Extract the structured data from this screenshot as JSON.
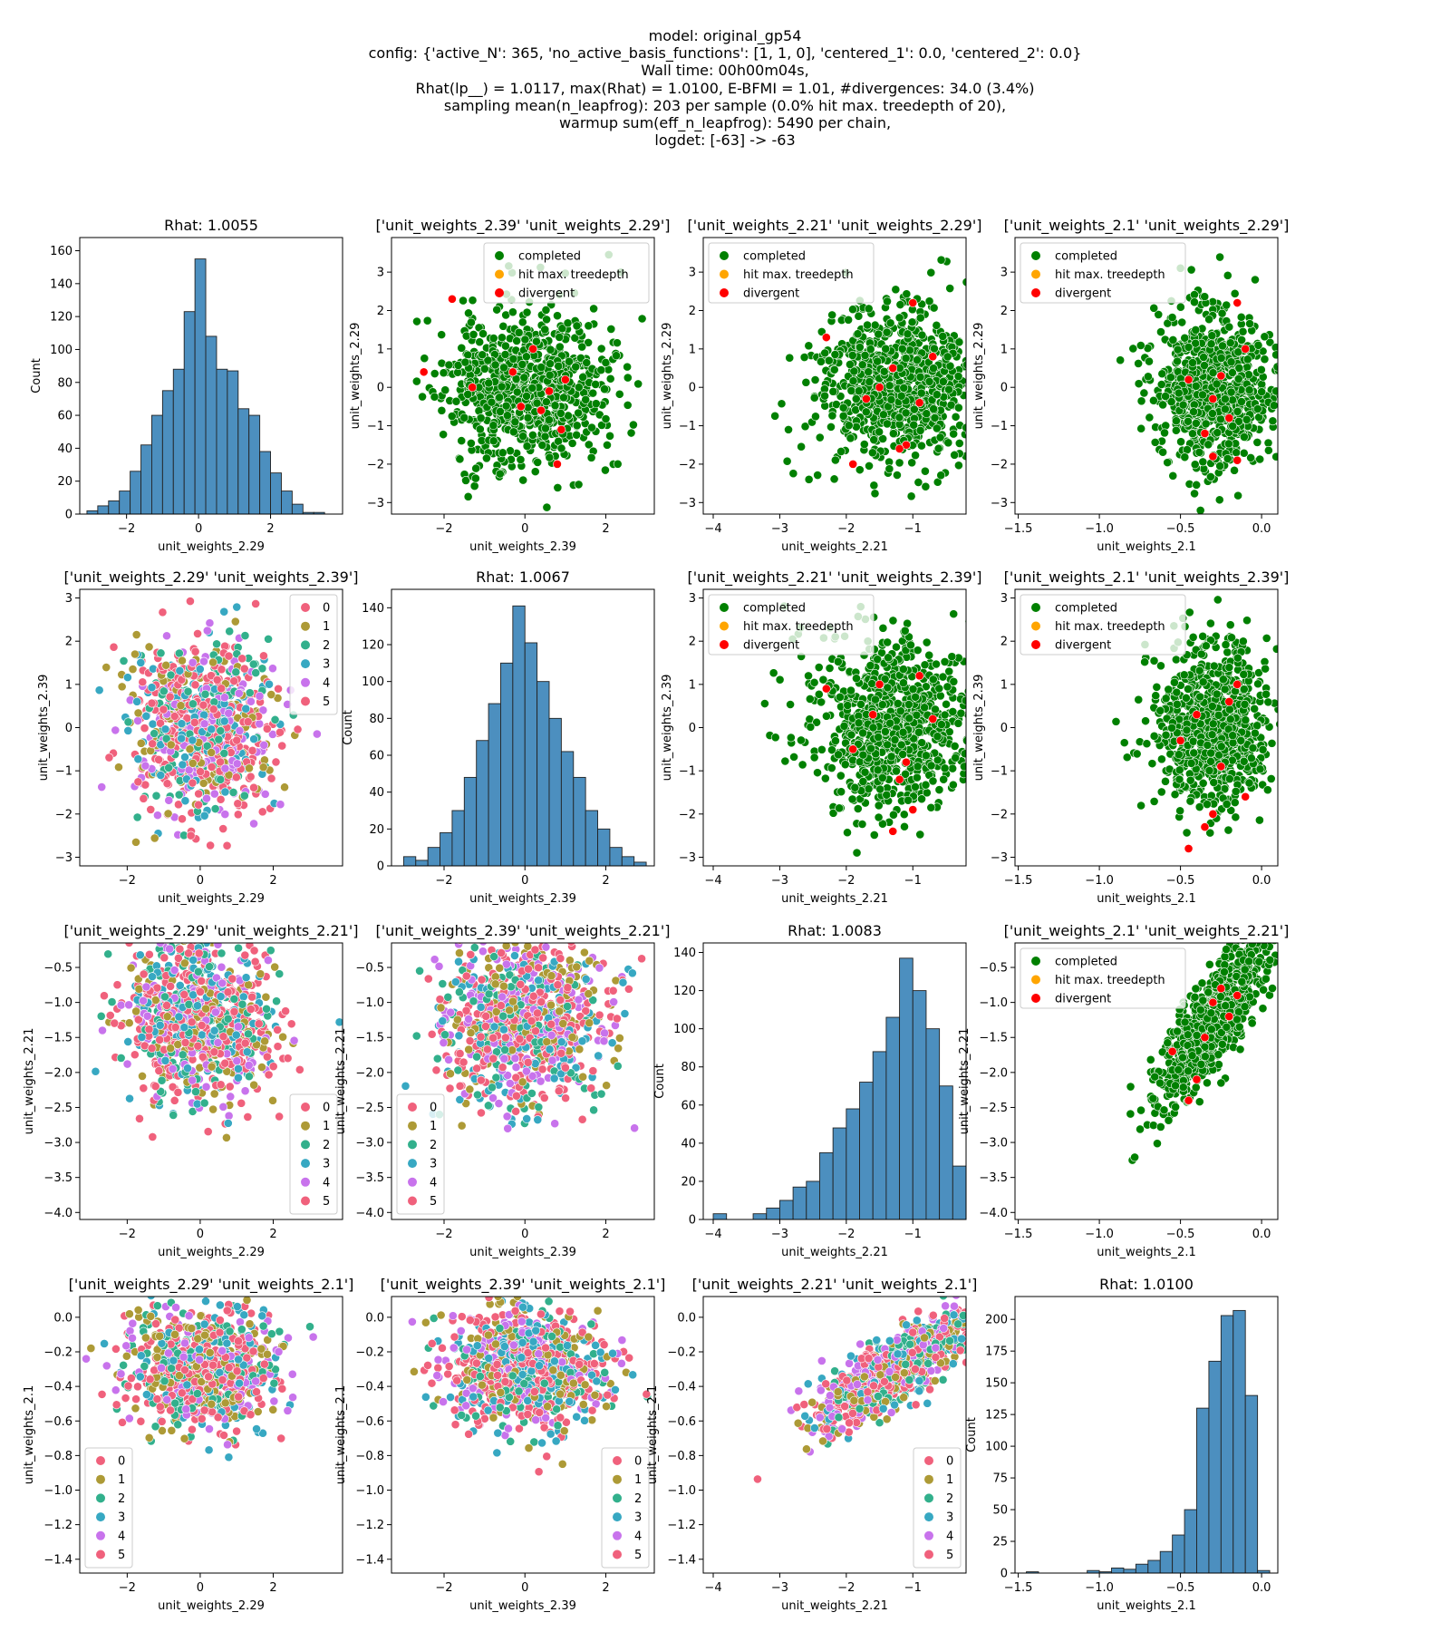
{
  "header": {
    "lines": [
      "model: original_gp54",
      "config: {'active_N': 365, 'no_active_basis_functions': [1, 1, 0], 'centered_1': 0.0, 'centered_2': 0.0}",
      "Wall time: 00h00m04s,",
      "Rhat(lp__) = 1.0117, max(Rhat) = 1.0100, E-BFMI = 1.01, #divergences: 34.0 (3.4%)",
      "sampling mean(n_leapfrog): 203 per sample (0.0% hit max. treedepth of 20),",
      "warmup sum(eff_n_leapfrog): 5490 per chain,",
      "logdet: [-63] -> -63"
    ]
  },
  "colors": {
    "hist_fill": "#4c8fbf",
    "completed": "#008000",
    "treedepth": "#ffa500",
    "divergent": "#ff0000",
    "chains": [
      "#f0617c",
      "#ad9a36",
      "#32b08c",
      "#37a8c2",
      "#c873ec",
      "#f0617c"
    ]
  },
  "legends": {
    "sampler": [
      "completed",
      "hit max. treedepth",
      "divergent"
    ],
    "chains": [
      "0",
      "1",
      "2",
      "3",
      "4",
      "5"
    ]
  },
  "chart_data": [
    {
      "type": "bar",
      "title": "Rhat: 1.0055",
      "xlabel": "unit_weights_2.29",
      "ylabel": "Count",
      "xlim": [
        -3.3,
        4.0
      ],
      "ylim": [
        0,
        168
      ],
      "xticks": [
        -2,
        0,
        2
      ],
      "yticks": [
        0,
        20,
        40,
        60,
        80,
        100,
        120,
        140,
        160
      ],
      "bins": [
        [
          -3.1,
          -2.8,
          2
        ],
        [
          -2.8,
          -2.5,
          5
        ],
        [
          -2.5,
          -2.2,
          8
        ],
        [
          -2.2,
          -1.9,
          14
        ],
        [
          -1.9,
          -1.6,
          26
        ],
        [
          -1.6,
          -1.3,
          42
        ],
        [
          -1.3,
          -1.0,
          60
        ],
        [
          -1.0,
          -0.7,
          75
        ],
        [
          -0.7,
          -0.4,
          88
        ],
        [
          -0.4,
          -0.1,
          123
        ],
        [
          -0.1,
          0.2,
          155
        ],
        [
          0.2,
          0.5,
          108
        ],
        [
          0.5,
          0.8,
          88
        ],
        [
          0.8,
          1.1,
          87
        ],
        [
          1.1,
          1.4,
          64
        ],
        [
          1.4,
          1.7,
          60
        ],
        [
          1.7,
          2.0,
          38
        ],
        [
          2.0,
          2.3,
          25
        ],
        [
          2.3,
          2.6,
          14
        ],
        [
          2.6,
          2.9,
          6
        ],
        [
          2.9,
          3.2,
          1
        ],
        [
          3.2,
          3.5,
          1
        ]
      ]
    },
    {
      "type": "scatter",
      "title": "['unit_weights_2.39' 'unit_weights_2.29']",
      "xlabel": "unit_weights_2.39",
      "ylabel": "unit_weights_2.29",
      "xlim": [
        -3.3,
        3.2
      ],
      "ylim": [
        -3.3,
        3.9
      ],
      "xticks": [
        -2,
        0,
        2
      ],
      "yticks": [
        -3,
        -2,
        -1,
        0,
        1,
        2,
        3
      ],
      "legend": "sampler",
      "legend_pos": "upper-right",
      "gen": {
        "n": 820,
        "mx": 0,
        "sx": 1.0,
        "my": 0,
        "sy": 1.0,
        "r": 0,
        "seed": 11
      },
      "divergent": [
        [
          -2.5,
          0.4
        ],
        [
          -1.8,
          2.3
        ],
        [
          -0.3,
          0.4
        ],
        [
          0.8,
          -2.0
        ],
        [
          0.4,
          -0.6
        ],
        [
          1.0,
          0.2
        ],
        [
          -0.1,
          -0.5
        ],
        [
          0.2,
          1.0
        ],
        [
          0.6,
          -0.1
        ],
        [
          -1.3,
          0.0
        ],
        [
          0.9,
          -1.1
        ]
      ]
    },
    {
      "type": "scatter",
      "title": "['unit_weights_2.21' 'unit_weights_2.29']",
      "xlabel": "unit_weights_2.21",
      "ylabel": "unit_weights_2.29",
      "xlim": [
        -4.15,
        -0.2
      ],
      "ylim": [
        -3.3,
        3.9
      ],
      "xticks": [
        -4,
        -3,
        -2,
        -1
      ],
      "yticks": [
        -3,
        -2,
        -1,
        0,
        1,
        2,
        3
      ],
      "legend": "sampler",
      "legend_pos": "upper-left",
      "gen": {
        "n": 820,
        "mx": -1.25,
        "sx": 0.6,
        "my": 0,
        "sy": 1.0,
        "r": 0,
        "seed": 23
      },
      "divergent": [
        [
          -1.0,
          2.2
        ],
        [
          -1.9,
          -2.0
        ],
        [
          -1.5,
          0.0
        ],
        [
          -1.1,
          -1.5
        ],
        [
          -0.9,
          -0.4
        ],
        [
          -2.3,
          1.3
        ],
        [
          -1.3,
          0.5
        ],
        [
          -0.7,
          0.8
        ],
        [
          -1.7,
          -0.3
        ],
        [
          -1.2,
          -1.6
        ]
      ]
    },
    {
      "type": "scatter",
      "title": "['unit_weights_2.1' 'unit_weights_2.29']",
      "xlabel": "unit_weights_2.1",
      "ylabel": "unit_weights_2.29",
      "xlim": [
        -1.52,
        0.1
      ],
      "ylim": [
        -3.3,
        3.9
      ],
      "xticks": [
        -1.5,
        -1.0,
        -0.5,
        0.0
      ],
      "yticks": [
        -3,
        -2,
        -1,
        0,
        1,
        2,
        3
      ],
      "legend": "sampler",
      "legend_pos": "upper-left",
      "gen": {
        "n": 820,
        "mx": -0.3,
        "sx": 0.17,
        "my": 0,
        "sy": 1.0,
        "r": 0,
        "seed": 37
      },
      "divergent": [
        [
          -0.15,
          2.2
        ],
        [
          -0.3,
          -1.8
        ],
        [
          -0.25,
          0.3
        ],
        [
          -0.35,
          -1.2
        ],
        [
          -0.2,
          -0.8
        ],
        [
          -0.45,
          0.2
        ],
        [
          -0.1,
          1.0
        ],
        [
          -0.3,
          -0.3
        ],
        [
          -0.15,
          -1.9
        ]
      ]
    },
    {
      "type": "scatter",
      "title": "['unit_weights_2.29' 'unit_weights_2.39']",
      "xlabel": "unit_weights_2.29",
      "ylabel": "unit_weights_2.39",
      "xlim": [
        -3.3,
        3.9
      ],
      "ylim": [
        -3.2,
        3.2
      ],
      "xticks": [
        -2,
        0,
        2
      ],
      "yticks": [
        -3,
        -2,
        -1,
        0,
        1,
        2,
        3
      ],
      "legend": "chains",
      "legend_pos": "upper-right",
      "gen": {
        "n": 900,
        "mx": 0,
        "sx": 1.0,
        "my": 0,
        "sy": 1.0,
        "r": 0,
        "seed": 51
      }
    },
    {
      "type": "bar",
      "title": "Rhat: 1.0067",
      "xlabel": "unit_weights_2.39",
      "ylabel": "Count",
      "xlim": [
        -3.3,
        3.2
      ],
      "ylim": [
        0,
        150
      ],
      "xticks": [
        -2,
        0,
        2
      ],
      "yticks": [
        0,
        20,
        40,
        60,
        80,
        100,
        120,
        140
      ],
      "bins": [
        [
          -3.0,
          -2.7,
          5
        ],
        [
          -2.7,
          -2.4,
          3
        ],
        [
          -2.4,
          -2.1,
          10
        ],
        [
          -2.1,
          -1.8,
          18
        ],
        [
          -1.8,
          -1.5,
          30
        ],
        [
          -1.5,
          -1.2,
          48
        ],
        [
          -1.2,
          -0.9,
          68
        ],
        [
          -0.9,
          -0.6,
          88
        ],
        [
          -0.6,
          -0.3,
          110
        ],
        [
          -0.3,
          0.0,
          141
        ],
        [
          0.0,
          0.3,
          121
        ],
        [
          0.3,
          0.6,
          100
        ],
        [
          0.6,
          0.9,
          80
        ],
        [
          0.9,
          1.2,
          62
        ],
        [
          1.2,
          1.5,
          48
        ],
        [
          1.5,
          1.8,
          30
        ],
        [
          1.8,
          2.1,
          20
        ],
        [
          2.1,
          2.4,
          10
        ],
        [
          2.4,
          2.7,
          5
        ],
        [
          2.7,
          3.0,
          2
        ]
      ]
    },
    {
      "type": "scatter",
      "title": "['unit_weights_2.21' 'unit_weights_2.39']",
      "xlabel": "unit_weights_2.21",
      "ylabel": "unit_weights_2.39",
      "xlim": [
        -4.15,
        -0.2
      ],
      "ylim": [
        -3.2,
        3.2
      ],
      "xticks": [
        -4,
        -3,
        -2,
        -1
      ],
      "yticks": [
        -3,
        -2,
        -1,
        0,
        1,
        2,
        3
      ],
      "legend": "sampler",
      "legend_pos": "upper-left",
      "gen": {
        "n": 820,
        "mx": -1.25,
        "sx": 0.6,
        "my": 0,
        "sy": 1.0,
        "r": 0,
        "seed": 63
      },
      "divergent": [
        [
          -2.3,
          0.9
        ],
        [
          -1.2,
          -1.2
        ],
        [
          -1.0,
          -1.9
        ],
        [
          -1.6,
          0.3
        ],
        [
          -0.9,
          1.2
        ],
        [
          -1.9,
          -0.5
        ],
        [
          -1.3,
          -2.4
        ],
        [
          -0.7,
          0.2
        ],
        [
          -1.5,
          1.0
        ],
        [
          -1.1,
          -0.8
        ]
      ]
    },
    {
      "type": "scatter",
      "title": "['unit_weights_2.1' 'unit_weights_2.39']",
      "xlabel": "unit_weights_2.1",
      "ylabel": "unit_weights_2.39",
      "xlim": [
        -1.52,
        0.1
      ],
      "ylim": [
        -3.2,
        3.2
      ],
      "xticks": [
        -1.5,
        -1.0,
        -0.5,
        0.0
      ],
      "yticks": [
        -3,
        -2,
        -1,
        0,
        1,
        2,
        3
      ],
      "legend": "sampler",
      "legend_pos": "upper-left",
      "gen": {
        "n": 820,
        "mx": -0.3,
        "sx": 0.17,
        "my": 0,
        "sy": 1.0,
        "r": 0,
        "seed": 77
      },
      "divergent": [
        [
          -0.5,
          -0.3
        ],
        [
          -0.2,
          0.6
        ],
        [
          -0.35,
          -2.3
        ],
        [
          -0.45,
          -2.8
        ],
        [
          -0.15,
          1.0
        ],
        [
          -0.25,
          -0.9
        ],
        [
          -0.4,
          0.3
        ],
        [
          -0.1,
          -1.6
        ],
        [
          -0.3,
          -2.0
        ]
      ]
    },
    {
      "type": "scatter",
      "title": "['unit_weights_2.29' 'unit_weights_2.21']",
      "xlabel": "unit_weights_2.29",
      "ylabel": "unit_weights_2.21",
      "xlim": [
        -3.3,
        3.9
      ],
      "ylim": [
        -4.1,
        -0.15
      ],
      "xticks": [
        -2,
        0,
        2
      ],
      "yticks": [
        -4.0,
        -3.5,
        -3.0,
        -2.5,
        -2.0,
        -1.5,
        -1.0,
        -0.5
      ],
      "legend": "chains",
      "legend_pos": "lower-right",
      "gen": {
        "n": 900,
        "mx": 0,
        "sx": 1.0,
        "my": -1.25,
        "sy": 0.6,
        "r": 0,
        "seed": 89
      }
    },
    {
      "type": "scatter",
      "title": "['unit_weights_2.39' 'unit_weights_2.21']",
      "xlabel": "unit_weights_2.39",
      "ylabel": "unit_weights_2.21",
      "xlim": [
        -3.3,
        3.2
      ],
      "ylim": [
        -4.1,
        -0.15
      ],
      "xticks": [
        -2,
        0,
        2
      ],
      "yticks": [
        -4.0,
        -3.5,
        -3.0,
        -2.5,
        -2.0,
        -1.5,
        -1.0,
        -0.5
      ],
      "legend": "chains",
      "legend_pos": "lower-left",
      "gen": {
        "n": 900,
        "mx": 0,
        "sx": 1.0,
        "my": -1.25,
        "sy": 0.6,
        "r": 0,
        "seed": 97
      }
    },
    {
      "type": "bar",
      "title": "Rhat: 1.0083",
      "xlabel": "unit_weights_2.21",
      "ylabel": "Count",
      "xlim": [
        -4.15,
        -0.2
      ],
      "ylim": [
        0,
        145
      ],
      "xticks": [
        -4,
        -3,
        -2,
        -1
      ],
      "yticks": [
        0,
        20,
        40,
        60,
        80,
        100,
        120,
        140
      ],
      "bins": [
        [
          -4.0,
          -3.8,
          3
        ],
        [
          -3.8,
          -3.6,
          0
        ],
        [
          -3.6,
          -3.4,
          0
        ],
        [
          -3.4,
          -3.2,
          3
        ],
        [
          -3.2,
          -3.0,
          6
        ],
        [
          -3.0,
          -2.8,
          10
        ],
        [
          -2.8,
          -2.6,
          17
        ],
        [
          -2.6,
          -2.4,
          20
        ],
        [
          -2.4,
          -2.2,
          35
        ],
        [
          -2.2,
          -2.0,
          48
        ],
        [
          -2.0,
          -1.8,
          58
        ],
        [
          -1.8,
          -1.6,
          72
        ],
        [
          -1.6,
          -1.4,
          88
        ],
        [
          -1.4,
          -1.2,
          106
        ],
        [
          -1.2,
          -1.0,
          137
        ],
        [
          -1.0,
          -0.8,
          120
        ],
        [
          -0.8,
          -0.6,
          100
        ],
        [
          -0.6,
          -0.4,
          70
        ],
        [
          -0.4,
          -0.2,
          28
        ]
      ]
    },
    {
      "type": "scatter",
      "title": "['unit_weights_2.1' 'unit_weights_2.21']",
      "xlabel": "unit_weights_2.1",
      "ylabel": "unit_weights_2.21",
      "xlim": [
        -1.52,
        0.1
      ],
      "ylim": [
        -4.1,
        -0.15
      ],
      "xticks": [
        -1.5,
        -1.0,
        -0.5,
        0.0
      ],
      "yticks": [
        -4.0,
        -3.5,
        -3.0,
        -2.5,
        -2.0,
        -1.5,
        -1.0,
        -0.5
      ],
      "legend": "sampler",
      "legend_pos": "upper-left",
      "gen": {
        "n": 820,
        "mx": -0.3,
        "sx": 0.17,
        "my": -1.25,
        "sy": 0.6,
        "r": 0.82,
        "seed": 103
      },
      "divergent": [
        [
          -0.55,
          -1.7
        ],
        [
          -0.25,
          -0.8
        ],
        [
          -0.4,
          -2.1
        ],
        [
          -0.2,
          -1.2
        ],
        [
          -0.35,
          -1.5
        ],
        [
          -0.15,
          -0.9
        ],
        [
          -0.45,
          -2.4
        ],
        [
          -0.3,
          -1.0
        ]
      ]
    },
    {
      "type": "scatter",
      "title": "['unit_weights_2.29' 'unit_weights_2.1']",
      "xlabel": "unit_weights_2.29",
      "ylabel": "unit_weights_2.1",
      "xlim": [
        -3.3,
        3.9
      ],
      "ylim": [
        -1.48,
        0.12
      ],
      "xticks": [
        -2,
        0,
        2
      ],
      "yticks": [
        -1.4,
        -1.2,
        -1.0,
        -0.8,
        -0.6,
        -0.4,
        -0.2,
        0.0
      ],
      "legend": "chains",
      "legend_pos": "lower-left",
      "gen": {
        "n": 900,
        "mx": 0,
        "sx": 1.0,
        "my": -0.3,
        "sy": 0.17,
        "r": 0,
        "seed": 117
      }
    },
    {
      "type": "scatter",
      "title": "['unit_weights_2.39' 'unit_weights_2.1']",
      "xlabel": "unit_weights_2.39",
      "ylabel": "unit_weights_2.1",
      "xlim": [
        -3.3,
        3.2
      ],
      "ylim": [
        -1.48,
        0.12
      ],
      "xticks": [
        -2,
        0,
        2
      ],
      "yticks": [
        -1.4,
        -1.2,
        -1.0,
        -0.8,
        -0.6,
        -0.4,
        -0.2,
        0.0
      ],
      "legend": "chains",
      "legend_pos": "lower-right",
      "gen": {
        "n": 900,
        "mx": 0,
        "sx": 1.0,
        "my": -0.3,
        "sy": 0.17,
        "r": 0,
        "seed": 131
      }
    },
    {
      "type": "scatter",
      "title": "['unit_weights_2.21' 'unit_weights_2.1']",
      "xlabel": "unit_weights_2.21",
      "ylabel": "unit_weights_2.1",
      "xlim": [
        -4.15,
        -0.2
      ],
      "ylim": [
        -1.48,
        0.12
      ],
      "xticks": [
        -4,
        -3,
        -2,
        -1
      ],
      "yticks": [
        -1.4,
        -1.2,
        -1.0,
        -0.8,
        -0.6,
        -0.4,
        -0.2,
        0.0
      ],
      "legend": "chains",
      "legend_pos": "lower-right",
      "gen": {
        "n": 900,
        "mx": -1.25,
        "sx": 0.6,
        "my": -0.3,
        "sy": 0.17,
        "r": 0.82,
        "seed": 149
      }
    },
    {
      "type": "bar",
      "title": "Rhat: 1.0100",
      "xlabel": "unit_weights_2.1",
      "ylabel": "Count",
      "xlim": [
        -1.52,
        0.1
      ],
      "ylim": [
        0,
        218
      ],
      "xticks": [
        -1.5,
        -1.0,
        -0.5,
        0.0
      ],
      "yticks": [
        0,
        25,
        50,
        75,
        100,
        125,
        150,
        175,
        200
      ],
      "bins": [
        [
          -1.45,
          -1.375,
          1
        ],
        [
          -1.375,
          -1.3,
          0
        ],
        [
          -1.3,
          -1.225,
          0
        ],
        [
          -1.225,
          -1.15,
          0
        ],
        [
          -1.15,
          -1.075,
          0
        ],
        [
          -1.075,
          -1.0,
          2
        ],
        [
          -1.0,
          -0.925,
          1
        ],
        [
          -0.925,
          -0.85,
          4
        ],
        [
          -0.85,
          -0.775,
          3
        ],
        [
          -0.775,
          -0.7,
          7
        ],
        [
          -0.7,
          -0.625,
          10
        ],
        [
          -0.625,
          -0.55,
          17
        ],
        [
          -0.55,
          -0.475,
          30
        ],
        [
          -0.475,
          -0.4,
          50
        ],
        [
          -0.4,
          -0.325,
          130
        ],
        [
          -0.325,
          -0.25,
          167
        ],
        [
          -0.25,
          -0.175,
          203
        ],
        [
          -0.175,
          -0.1,
          207
        ],
        [
          -0.1,
          -0.025,
          140
        ],
        [
          -0.025,
          0.05,
          2
        ]
      ]
    }
  ]
}
